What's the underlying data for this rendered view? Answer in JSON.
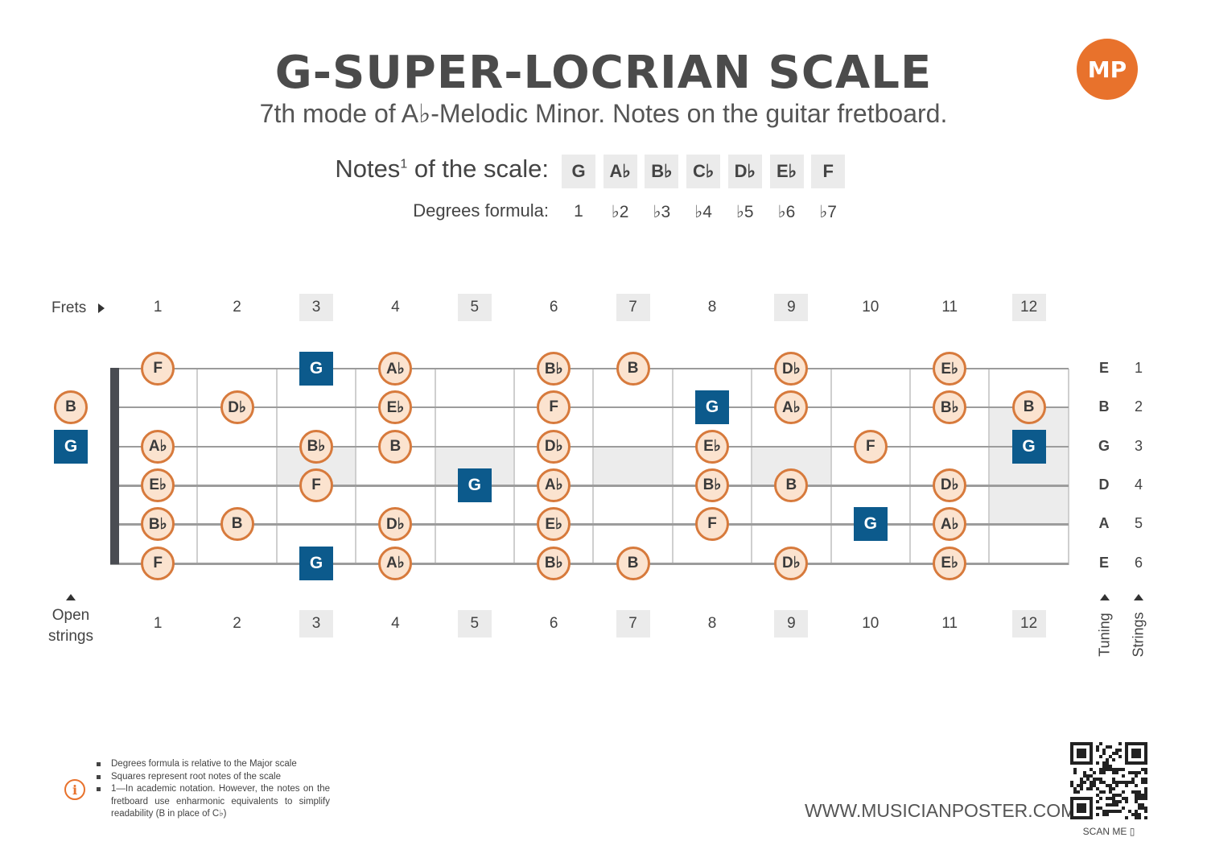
{
  "header": {
    "title": "G-SUPER-LOCRIAN SCALE",
    "subtitle": "7th mode of A♭-Melodic Minor. Notes on the guitar fretboard.",
    "logo": "MP"
  },
  "scale": {
    "notes_label": "Notes",
    "notes_sup": "1",
    "notes_label_tail": " of the scale:",
    "degrees_label": "Degrees formula:",
    "notes": [
      "G",
      "A♭",
      "B♭",
      "C♭",
      "D♭",
      "E♭",
      "F"
    ],
    "degrees": [
      "1",
      "♭2",
      "♭3",
      "♭4",
      "♭5",
      "♭6",
      "♭7"
    ]
  },
  "fretboard": {
    "frets_label": "Frets",
    "frets": [
      "1",
      "2",
      "3",
      "4",
      "5",
      "6",
      "7",
      "8",
      "9",
      "10",
      "11",
      "12"
    ],
    "highlighted_frets": [
      3,
      5,
      7,
      9,
      12
    ],
    "open_strings_label_1": "Open",
    "open_strings_label_2": "strings",
    "tuning": [
      "E",
      "B",
      "G",
      "D",
      "A",
      "E"
    ],
    "string_numbers": [
      "1",
      "2",
      "3",
      "4",
      "5",
      "6"
    ],
    "tuning_label": "Tuning",
    "strings_label": "Strings",
    "positions": [
      {
        "string": 1,
        "fret": 1,
        "note": "F"
      },
      {
        "string": 1,
        "fret": 3,
        "note": "G",
        "root": true
      },
      {
        "string": 1,
        "fret": 4,
        "note": "Ab"
      },
      {
        "string": 1,
        "fret": 6,
        "note": "Bb"
      },
      {
        "string": 1,
        "fret": 7,
        "note": "B"
      },
      {
        "string": 1,
        "fret": 9,
        "note": "Db"
      },
      {
        "string": 1,
        "fret": 11,
        "note": "Eb"
      },
      {
        "string": 2,
        "fret": 0,
        "note": "B"
      },
      {
        "string": 2,
        "fret": 2,
        "note": "Db"
      },
      {
        "string": 2,
        "fret": 4,
        "note": "Eb"
      },
      {
        "string": 2,
        "fret": 6,
        "note": "F"
      },
      {
        "string": 2,
        "fret": 8,
        "note": "G",
        "root": true
      },
      {
        "string": 2,
        "fret": 9,
        "note": "Ab"
      },
      {
        "string": 2,
        "fret": 11,
        "note": "Bb"
      },
      {
        "string": 2,
        "fret": 12,
        "note": "B"
      },
      {
        "string": 3,
        "fret": 0,
        "note": "G",
        "root": true
      },
      {
        "string": 3,
        "fret": 1,
        "note": "Ab"
      },
      {
        "string": 3,
        "fret": 3,
        "note": "Bb"
      },
      {
        "string": 3,
        "fret": 4,
        "note": "B"
      },
      {
        "string": 3,
        "fret": 6,
        "note": "Db"
      },
      {
        "string": 3,
        "fret": 8,
        "note": "Eb"
      },
      {
        "string": 3,
        "fret": 10,
        "note": "F"
      },
      {
        "string": 3,
        "fret": 12,
        "note": "G",
        "root": true
      },
      {
        "string": 4,
        "fret": 1,
        "note": "Eb"
      },
      {
        "string": 4,
        "fret": 3,
        "note": "F"
      },
      {
        "string": 4,
        "fret": 5,
        "note": "G",
        "root": true
      },
      {
        "string": 4,
        "fret": 6,
        "note": "Ab"
      },
      {
        "string": 4,
        "fret": 8,
        "note": "Bb"
      },
      {
        "string": 4,
        "fret": 9,
        "note": "B"
      },
      {
        "string": 4,
        "fret": 11,
        "note": "Db"
      },
      {
        "string": 5,
        "fret": 1,
        "note": "Bb"
      },
      {
        "string": 5,
        "fret": 2,
        "note": "B"
      },
      {
        "string": 5,
        "fret": 4,
        "note": "Db"
      },
      {
        "string": 5,
        "fret": 6,
        "note": "Eb"
      },
      {
        "string": 5,
        "fret": 8,
        "note": "F"
      },
      {
        "string": 5,
        "fret": 10,
        "note": "G",
        "root": true
      },
      {
        "string": 5,
        "fret": 11,
        "note": "Ab"
      },
      {
        "string": 6,
        "fret": 1,
        "note": "F"
      },
      {
        "string": 6,
        "fret": 3,
        "note": "G",
        "root": true
      },
      {
        "string": 6,
        "fret": 4,
        "note": "Ab"
      },
      {
        "string": 6,
        "fret": 6,
        "note": "Bb"
      },
      {
        "string": 6,
        "fret": 7,
        "note": "B"
      },
      {
        "string": 6,
        "fret": 9,
        "note": "Db"
      },
      {
        "string": 6,
        "fret": 11,
        "note": "Eb"
      }
    ]
  },
  "footer": {
    "footnotes": [
      "Degrees formula is relative to the Major scale",
      "Squares represent root notes of the scale",
      "1—In academic notation. However, the notes on the fretboard use enharmonic equivalents to simplify readability (B in place of C♭)"
    ],
    "url": "WWW.MUSICIANPOSTER.COM",
    "scan_me": "SCAN ME"
  },
  "colors": {
    "root": "#0c5a8c",
    "dot_fill": "#fbe3cf",
    "dot_border": "#d77a3c",
    "accent": "#e8722c"
  }
}
